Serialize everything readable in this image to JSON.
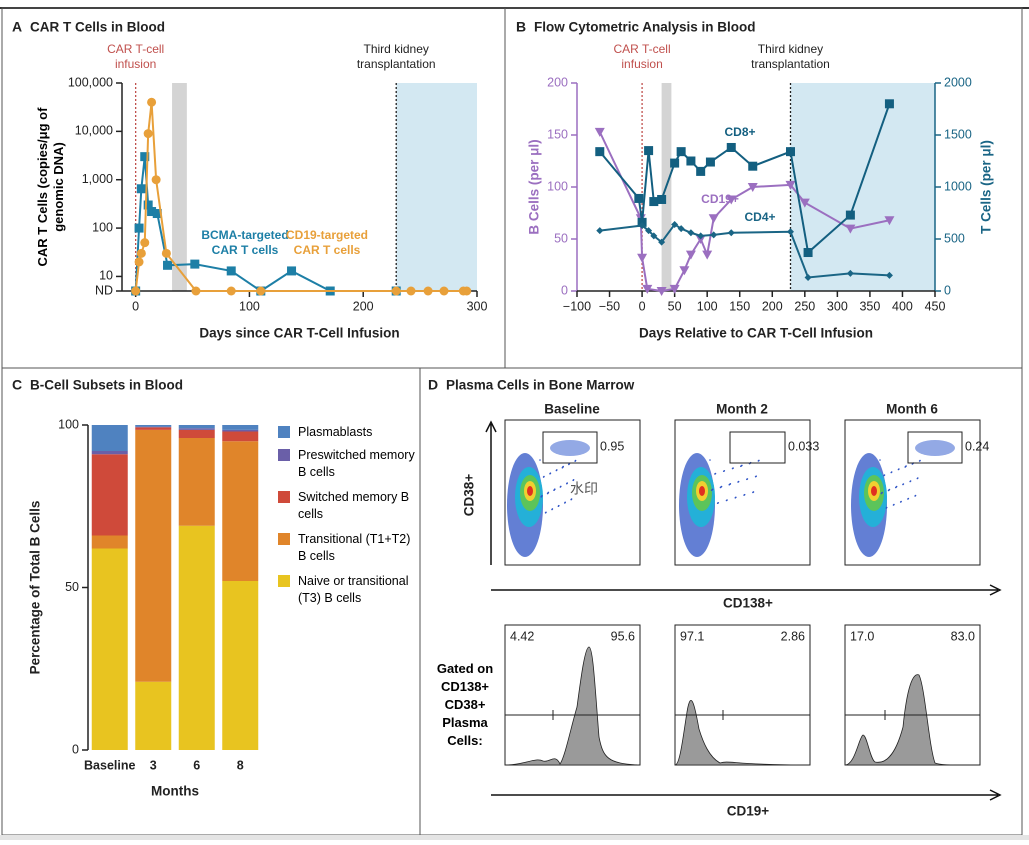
{
  "chart_data": [
    {
      "panel": "A",
      "type": "line",
      "title": "CAR T Cells in Blood",
      "x_label": "Days since CAR T-Cell Infusion",
      "y_label": "CAR T Cells (copies/μg of genomic DNA)",
      "log_y": true,
      "xlim": [
        -12,
        300
      ],
      "xticks": [
        0,
        100,
        200,
        300
      ],
      "ylim": [
        5,
        100000
      ],
      "yticks": [
        {
          "value": 100000,
          "label": "100,000"
        },
        {
          "value": 10000,
          "label": "10,000"
        },
        {
          "value": 1000,
          "label": "1,000"
        },
        100,
        10,
        {
          "value": 5,
          "label": "ND"
        }
      ],
      "vlines": [
        {
          "x": 0,
          "color": "#c0504d",
          "label": "CAR T-cell infusion"
        },
        {
          "x": 229,
          "color": "#222222",
          "label": "Third kidney transplantation"
        }
      ],
      "shaded": [
        {
          "x0": 32,
          "x1": 45,
          "color": "#d4d4d4"
        },
        {
          "x0": 229,
          "x1": 300,
          "color": "#d3e8f2"
        }
      ],
      "series": [
        {
          "name": "BCMA-targeted CAR T cells",
          "color": "#1d7fa6",
          "marker": "square",
          "x": [
            0,
            3,
            5,
            8,
            11,
            14,
            19,
            28,
            52,
            84,
            110,
            137,
            171,
            229
          ],
          "values": [
            5,
            100,
            650,
            3000,
            300,
            220,
            200,
            17,
            18,
            13,
            5,
            13,
            5,
            5
          ]
        },
        {
          "name": "CD19-targeted CAR T cells",
          "color": "#e8a03a",
          "marker": "circle",
          "x": [
            0,
            3,
            5,
            8,
            11,
            14,
            18,
            27,
            53,
            84,
            110,
            229,
            242,
            257,
            271,
            288,
            291
          ],
          "values": [
            5,
            20,
            30,
            50,
            9000,
            40000,
            1000,
            30,
            5,
            5,
            5,
            5,
            5,
            5,
            5,
            5,
            5
          ]
        }
      ]
    },
    {
      "panel": "B",
      "type": "line",
      "title": "Flow Cytometric Analysis in Blood",
      "x_label": "Days Relative to CAR T-Cell Infusion",
      "y_label": "B Cells (per μl)",
      "y2_label": "T Cells (per μl)",
      "y_axis_color": "#9b6fc0",
      "y2_axis_color": "#1a6585",
      "xlim": [
        -100,
        450
      ],
      "xticks": [
        {
          "value": -100,
          "label": "−100"
        },
        {
          "value": -50,
          "label": "−50"
        },
        0,
        50,
        100,
        150,
        200,
        250,
        300,
        350,
        400,
        450
      ],
      "ylim": [
        0,
        200
      ],
      "yticks": [
        0,
        50,
        100,
        150,
        200
      ],
      "y2lim": [
        0,
        2000
      ],
      "y2ticks": [
        0,
        500,
        1000,
        1500,
        2000
      ],
      "vlines": [
        {
          "x": 0,
          "color": "#c0504d",
          "label": "CAR T-cell infusion"
        },
        {
          "x": 228,
          "color": "#222222",
          "label": "Third kidney transplantation"
        }
      ],
      "shaded": [
        {
          "x0": 30,
          "x1": 45,
          "color": "#d4d4d4"
        },
        {
          "x0": 228,
          "x1": 450,
          "color": "#d3e8f2"
        }
      ],
      "series": [
        {
          "name": "CD19+",
          "color": "#9b6fc0",
          "marker": "triangle",
          "x": [
            -65,
            -2,
            0,
            8,
            30,
            50,
            65,
            75,
            90,
            100,
            110,
            137,
            170,
            228,
            250,
            320,
            380
          ],
          "values": [
            153,
            70,
            32,
            2,
            0,
            2,
            20,
            35,
            50,
            35,
            70,
            88,
            100,
            102,
            85,
            60,
            68
          ]
        },
        {
          "name": "CD8+",
          "color": "#135f80",
          "marker": "square",
          "axis": "y2",
          "x": [
            -65,
            -5,
            0,
            10,
            18,
            30,
            50,
            60,
            75,
            90,
            105,
            137,
            170,
            228,
            255,
            320,
            380
          ],
          "values": [
            1340,
            890,
            660,
            1350,
            860,
            880,
            1230,
            1340,
            1250,
            1150,
            1240,
            1380,
            1200,
            1340,
            370,
            730,
            1800
          ]
        },
        {
          "name": "CD4+",
          "color": "#1a6585",
          "marker": "diamond",
          "axis": "y2",
          "x": [
            -65,
            0,
            10,
            18,
            30,
            50,
            60,
            75,
            90,
            110,
            137,
            228,
            255,
            320,
            380
          ],
          "values": [
            580,
            630,
            580,
            530,
            470,
            640,
            600,
            560,
            530,
            540,
            560,
            570,
            130,
            170,
            150
          ]
        }
      ]
    },
    {
      "panel": "C",
      "type": "stacked_bar",
      "title": "B-Cell Subsets in Blood",
      "x_label": "Months",
      "y_label": "Percentage of Total B Cells",
      "categories": [
        "Baseline",
        "3",
        "6",
        "8"
      ],
      "ylim": [
        0,
        100
      ],
      "yticks": [
        0,
        50,
        100
      ],
      "series": [
        {
          "name": "Naive or transitional (T3) B cells",
          "color": "#e8c420",
          "values": [
            62,
            21,
            69,
            52
          ]
        },
        {
          "name": "Transitional (T1+T2) B cells",
          "color": "#e0852a",
          "values": [
            4,
            77.5,
            27,
            43
          ]
        },
        {
          "name": "Switched memory B cells",
          "color": "#cf4a3a",
          "values": [
            25,
            0.8,
            2.5,
            3
          ]
        },
        {
          "name": "Preswitched memory B cells",
          "color": "#6a5fa8",
          "values": [
            1,
            0.2,
            0.5,
            0.5
          ]
        },
        {
          "name": "Plasmablasts",
          "color": "#4f82c0",
          "values": [
            8,
            0.5,
            1,
            1.5
          ]
        }
      ]
    }
  ],
  "panel_d": {
    "panel": "D",
    "title": "Plasma Cells in Bone Marrow",
    "y_label": "CD38+",
    "x_label_top": "CD138+",
    "x_label_bottom": "CD19+",
    "gate_label": "Gated on CD138+ CD38+ Plasma Cells:",
    "watermark": "水印",
    "columns": [
      {
        "name": "Baseline",
        "gate": "0.95",
        "hist_left": "4.42",
        "hist_right": "95.6"
      },
      {
        "name": "Month 2",
        "gate": "0.033",
        "hist_left": "97.1",
        "hist_right": "2.86"
      },
      {
        "name": "Month 6",
        "gate": "0.24",
        "hist_left": "17.0",
        "hist_right": "83.0"
      }
    ]
  }
}
